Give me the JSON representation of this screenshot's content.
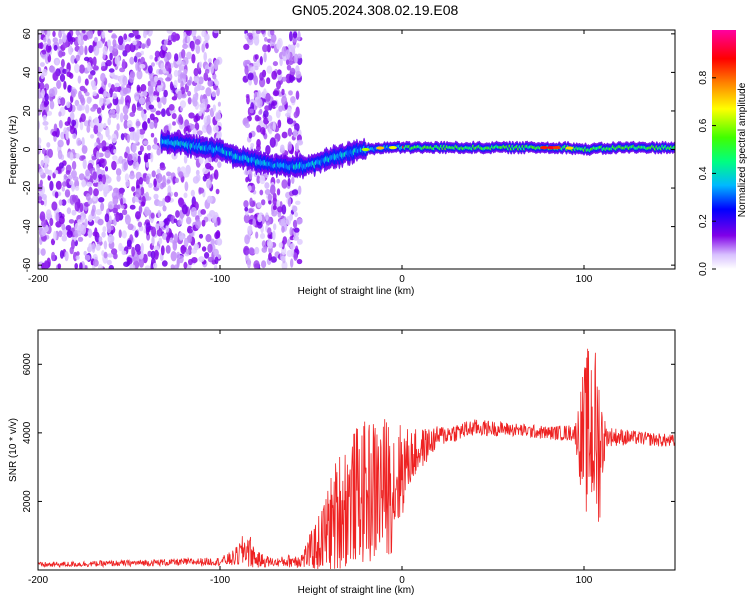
{
  "title": "GN05.2024.308.02.19.E08",
  "chart_data": [
    {
      "type": "heatmap",
      "xlabel": "Height of straight line (km)",
      "ylabel": "Frequency (Hz)",
      "xlim": [
        -200,
        150
      ],
      "ylim": [
        -62,
        62
      ],
      "xticks": [
        -200,
        -100,
        0,
        100
      ],
      "yticks": [
        -60,
        -40,
        -20,
        0,
        20,
        40,
        60
      ],
      "colorbar": {
        "label": "Normalized spectral amplitude",
        "ticks": [
          0.0,
          0.2,
          0.4,
          0.6,
          0.8
        ],
        "range": [
          0,
          1
        ],
        "colors": [
          "#ffffff",
          "#c8a8ff",
          "#7000e0",
          "#0000ff",
          "#00c8ff",
          "#00ff60",
          "#a0ff00",
          "#ffff00",
          "#ff8000",
          "#ff0000",
          "#ff00a0"
        ]
      },
      "noise_regions": [
        [
          -200,
          -100
        ],
        [
          -86,
          -56
        ]
      ],
      "ridge": [
        {
          "x": -132,
          "f": 4,
          "a": 0.35
        },
        {
          "x": -120,
          "f": 3,
          "a": 0.4
        },
        {
          "x": -110,
          "f": 1,
          "a": 0.45
        },
        {
          "x": -100,
          "f": 0,
          "a": 0.45
        },
        {
          "x": -90,
          "f": -4,
          "a": 0.45
        },
        {
          "x": -80,
          "f": -6,
          "a": 0.4
        },
        {
          "x": -70,
          "f": -8,
          "a": 0.4
        },
        {
          "x": -60,
          "f": -9,
          "a": 0.4
        },
        {
          "x": -50,
          "f": -8,
          "a": 0.4
        },
        {
          "x": -40,
          "f": -5,
          "a": 0.4
        },
        {
          "x": -30,
          "f": -2,
          "a": 0.45
        },
        {
          "x": -20,
          "f": 0,
          "a": 0.5
        },
        {
          "x": -10,
          "f": 1,
          "a": 0.55
        },
        {
          "x": 0,
          "f": 1,
          "a": 0.55
        },
        {
          "x": 20,
          "f": 1,
          "a": 0.55
        },
        {
          "x": 40,
          "f": 1,
          "a": 0.55
        },
        {
          "x": 60,
          "f": 1,
          "a": 0.6
        },
        {
          "x": 80,
          "f": 1,
          "a": 0.8
        },
        {
          "x": 90,
          "f": 1,
          "a": 0.6
        },
        {
          "x": 100,
          "f": 0,
          "a": 0.55
        },
        {
          "x": 120,
          "f": 1,
          "a": 0.5
        },
        {
          "x": 150,
          "f": 1,
          "a": 0.5
        }
      ]
    },
    {
      "type": "line",
      "xlabel": "Height of straight line (km)",
      "ylabel": "SNR (10 * v/v)",
      "xlim": [
        -200,
        150
      ],
      "ylim": [
        0,
        7000
      ],
      "xticks": [
        -200,
        -100,
        0,
        100
      ],
      "yticks": [
        2000,
        4000,
        6000
      ],
      "color": "#ee2222",
      "envelope": {
        "x": [
          -200,
          -150,
          -100,
          -92,
          -85,
          -80,
          -70,
          -55,
          -45,
          -35,
          -25,
          -15,
          -5,
          5,
          20,
          40,
          60,
          80,
          95,
          100,
          104,
          108,
          112,
          130,
          150
        ],
        "mean": [
          150,
          200,
          250,
          350,
          650,
          300,
          220,
          300,
          800,
          1700,
          2200,
          2300,
          2500,
          3300,
          3900,
          4150,
          4100,
          4000,
          4000,
          3800,
          4200,
          3600,
          3900,
          3850,
          3750
        ],
        "amp": [
          80,
          90,
          120,
          250,
          600,
          250,
          120,
          250,
          900,
          1800,
          2000,
          2200,
          2000,
          800,
          300,
          250,
          200,
          200,
          250,
          2200,
          2800,
          2600,
          300,
          200,
          200
        ]
      }
    }
  ]
}
